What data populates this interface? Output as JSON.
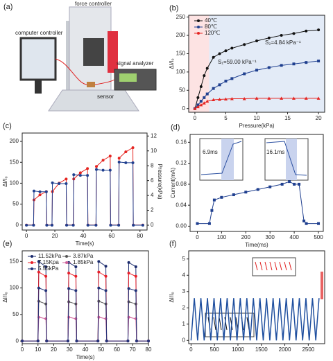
{
  "diagram": {
    "label": "(a)",
    "force": "force controller",
    "computer": "computer controller",
    "analyzer": "signal analyzer",
    "sensor": "sensor"
  },
  "chart_data": [
    {
      "type": "line",
      "label": "(b)",
      "xlabel": "Pressure(kPa)",
      "ylabel": "ΔI/I₀",
      "x": [
        0,
        0.5,
        1,
        1.5,
        2,
        3,
        4,
        5,
        6,
        8,
        10,
        12,
        14,
        16,
        18,
        20
      ],
      "xlim": [
        -1,
        21
      ],
      "xticks": [
        0,
        5,
        10,
        15,
        20
      ],
      "ylim": [
        -10,
        255
      ],
      "yticks": [
        0,
        50,
        100,
        150,
        200,
        250
      ],
      "legend": "upper left",
      "annotations": [
        "S₁=59.00 kPa⁻¹",
        "S₂=4.84 kPa⁻¹"
      ],
      "series": [
        {
          "name": "40℃",
          "color": "#111111",
          "marker": "circle",
          "values": [
            0,
            30,
            60,
            90,
            110,
            140,
            150,
            158,
            165,
            175,
            185,
            193,
            200,
            205,
            212,
            215
          ]
        },
        {
          "name": "80℃",
          "color": "#1f3f8f",
          "marker": "square",
          "values": [
            0,
            10,
            20,
            30,
            40,
            55,
            65,
            75,
            82,
            95,
            105,
            112,
            118,
            122,
            126,
            130
          ]
        },
        {
          "name": "120℃",
          "color": "#e52420",
          "marker": "triangle",
          "values": [
            0,
            5,
            10,
            15,
            20,
            24,
            25,
            26,
            27,
            27,
            28,
            28,
            28,
            28,
            28,
            28
          ]
        }
      ]
    },
    {
      "type": "line",
      "label": "(c)",
      "xlabel": "Time(s)",
      "ylabel": "ΔI/I₀",
      "y2label": "Pressure(kPa)",
      "x": [
        0,
        5,
        5.3,
        9.5,
        14,
        14.3,
        18,
        18.3,
        23,
        28,
        28.3,
        33,
        33.3,
        38,
        43,
        43.3,
        49,
        49.3,
        54,
        59,
        59.3,
        65,
        65.3,
        70,
        75,
        75.3,
        82
      ],
      "xlim": [
        -3,
        85
      ],
      "xticks": [
        0,
        20,
        40,
        60,
        80
      ],
      "ylim": [
        -12,
        220
      ],
      "yticks": [
        0,
        50,
        100,
        150,
        200
      ],
      "y2lim": [
        -0.65,
        12.4
      ],
      "y2ticks": [
        0,
        2,
        4,
        6,
        8,
        10,
        12
      ],
      "series": [
        {
          "color": "#e52420",
          "marker": "circle",
          "values": [
            0,
            0,
            60,
            72,
            80,
            0,
            0,
            80,
            100,
            110,
            0,
            0,
            110,
            125,
            135,
            0,
            0,
            140,
            155,
            165,
            0,
            0,
            160,
            175,
            185,
            0,
            0
          ]
        },
        {
          "color": "#1f3f8f",
          "marker": "circle",
          "axis": "y2",
          "values": [
            0,
            0,
            4.6,
            4.5,
            4.5,
            0,
            0,
            5.7,
            5.6,
            5.6,
            0,
            0,
            6.8,
            6.7,
            6.7,
            0,
            0,
            7.5,
            7.4,
            7.4,
            0,
            0,
            8.5,
            8.4,
            8.4,
            0,
            0
          ]
        }
      ]
    },
    {
      "type": "line",
      "label": "(d)",
      "xlabel": "Time(ms)",
      "ylabel": "Current(mA)",
      "x": [
        0,
        50,
        60,
        70,
        100,
        150,
        200,
        250,
        300,
        350,
        380,
        400,
        420,
        440,
        450,
        500
      ],
      "xlim": [
        -30,
        520
      ],
      "xticks": [
        0,
        100,
        200,
        300,
        400,
        500
      ],
      "ylim": [
        -0.01,
        0.175
      ],
      "yticks": [
        {
          "value": 0,
          "label": "0.00"
        },
        0.04,
        0.08,
        0.12,
        0.16
      ],
      "annotations": [
        "6.9ms",
        "16.1ms"
      ],
      "series": [
        {
          "color": "#1f3f8f",
          "marker": "square",
          "values": [
            0.005,
            0.005,
            0.03,
            0.05,
            0.055,
            0.06,
            0.065,
            0.07,
            0.075,
            0.08,
            0.085,
            0.08,
            0.08,
            0.01,
            0.005,
            0.005
          ]
        }
      ]
    },
    {
      "type": "line",
      "label": "(e)",
      "xlabel": "Time(s)",
      "ylabel": "ΔI/I₀",
      "x": [
        0,
        10,
        10.5,
        15,
        15.5,
        29,
        29.5,
        34,
        34.5,
        48,
        48.5,
        53,
        53.5,
        67,
        67.5,
        72,
        72.5,
        80
      ],
      "xlim": [
        0,
        80
      ],
      "xticks": [
        0,
        10,
        20,
        30,
        40,
        50,
        60,
        70,
        80
      ],
      "ylim": [
        -5,
        170
      ],
      "yticks": [
        0,
        50,
        100,
        150
      ],
      "legend": "upper left",
      "series": [
        {
          "name": "11.52kPa",
          "color": "#1a2a6c",
          "marker": "circle",
          "values": [
            0,
            0,
            150,
            140,
            0,
            0,
            148,
            140,
            0,
            0,
            150,
            141,
            0,
            0,
            148,
            140,
            0,
            0
          ]
        },
        {
          "name": "3.87kPa",
          "color": "#555555",
          "marker": "circle",
          "values": [
            0,
            0,
            75,
            70,
            0,
            0,
            74,
            70,
            0,
            0,
            75,
            70,
            0,
            0,
            74,
            70,
            0,
            0
          ]
        },
        {
          "name": "7.15Kpa",
          "color": "#e8202a",
          "marker": "circle",
          "values": [
            0,
            0,
            130,
            122,
            0,
            0,
            128,
            122,
            0,
            0,
            130,
            122,
            0,
            0,
            128,
            122,
            0,
            0
          ]
        },
        {
          "name": "1.85kPa",
          "color": "#d0609a",
          "marker": "circle",
          "values": [
            0,
            0,
            45,
            42,
            0,
            0,
            45,
            42,
            0,
            0,
            45,
            42,
            0,
            0,
            45,
            42,
            0,
            0
          ]
        },
        {
          "name": "5.55kPa",
          "color": "#22337a",
          "marker": "circle",
          "values": [
            0,
            0,
            100,
            95,
            0,
            0,
            99,
            95,
            0,
            0,
            100,
            95,
            0,
            0,
            99,
            95,
            0,
            0
          ]
        }
      ]
    },
    {
      "type": "line",
      "label": "(f)",
      "ylabel": "ΔI/I₀",
      "x": [
        0,
        70,
        140,
        210,
        280,
        350,
        420,
        490,
        560,
        630,
        700,
        770,
        840,
        910,
        980,
        1050,
        1120,
        1190,
        1260,
        1330,
        1400,
        1470,
        1540,
        1610,
        1680,
        1750,
        1820,
        1890,
        1960,
        2030,
        2100,
        2170,
        2240,
        2310,
        2380,
        2450,
        2520,
        2590,
        2660,
        2730
      ],
      "xlim": [
        -50,
        2850
      ],
      "xticks": [
        0,
        500,
        1000,
        1500,
        2000,
        2500
      ],
      "ylim": [
        -0.2,
        5.5
      ],
      "yticks": [
        0,
        1,
        2,
        3,
        4,
        5
      ],
      "series": [
        {
          "color": "#1f4f9f",
          "values": [
            0,
            2.6,
            0,
            2.6,
            0,
            2.6,
            0,
            2.6,
            0,
            2.6,
            0,
            2.6,
            0,
            2.6,
            0,
            2.6,
            0,
            2.6,
            0,
            2.6,
            0,
            2.6,
            0,
            2.6,
            0,
            2.6,
            0,
            2.6,
            0,
            2.6,
            0,
            2.6,
            0,
            2.6,
            0,
            2.6,
            0,
            2.6,
            0,
            2.6
          ]
        }
      ]
    }
  ]
}
